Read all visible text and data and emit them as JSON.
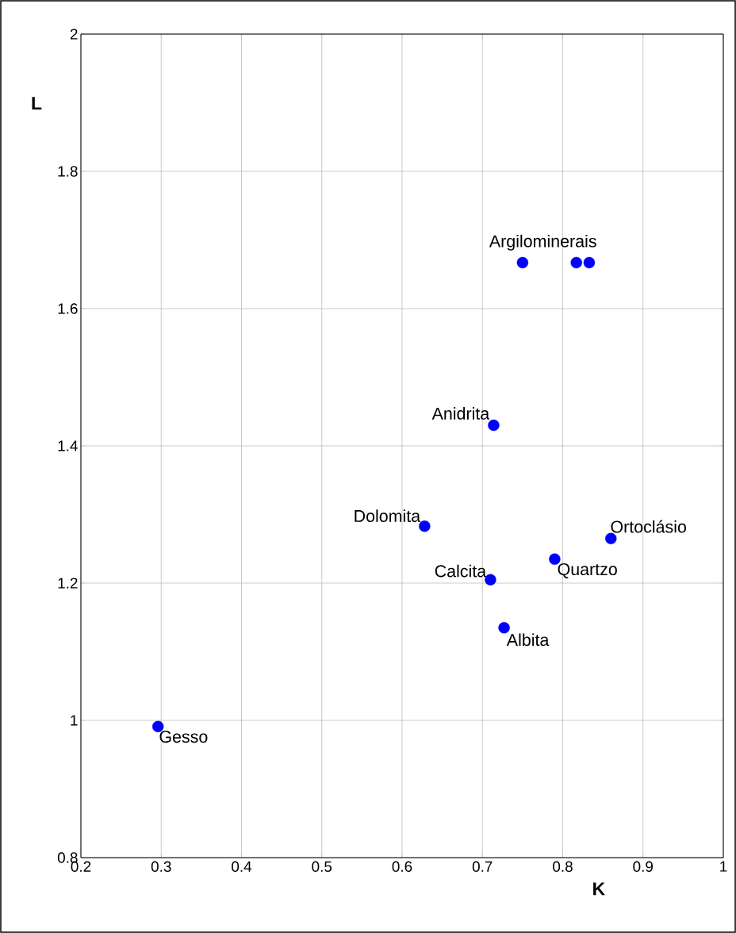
{
  "chart_data": {
    "type": "scatter",
    "xlabel": "K",
    "ylabel": "L",
    "x": [
      0.296,
      0.75,
      0.817,
      0.833,
      0.714,
      0.628,
      0.71,
      0.79,
      0.86,
      0.727
    ],
    "series": [
      {
        "color": "#0000ff",
        "values": [
          0.991,
          1.667,
          1.667,
          1.667,
          1.43,
          1.283,
          1.205,
          1.235,
          1.265,
          1.135
        ]
      }
    ],
    "marker": "circle",
    "grid": true,
    "xlim": [
      0.2,
      1
    ],
    "ylim": [
      0.8,
      2
    ],
    "xticks": [
      0.2,
      0.3,
      0.4,
      0.5,
      0.6,
      0.7,
      0.8,
      0.9,
      1
    ],
    "yticks": [
      0.8,
      1,
      1.2,
      1.4,
      1.6,
      1.8,
      2
    ],
    "annotations": [
      {
        "text": "Argilominerais",
        "x": 0.817,
        "y": 1.667
      },
      {
        "text": "Anidrita",
        "x": 0.714,
        "y": 1.43
      },
      {
        "text": "Dolomita",
        "x": 0.628,
        "y": 1.283
      },
      {
        "text": "Calcita",
        "x": 0.71,
        "y": 1.205
      },
      {
        "text": "Quartzo",
        "x": 0.79,
        "y": 1.235
      },
      {
        "text": "Ortoclásio",
        "x": 0.86,
        "y": 1.265
      },
      {
        "text": "Albita",
        "x": 0.727,
        "y": 1.135
      },
      {
        "text": "Gesso",
        "x": 0.296,
        "y": 0.991
      }
    ]
  }
}
